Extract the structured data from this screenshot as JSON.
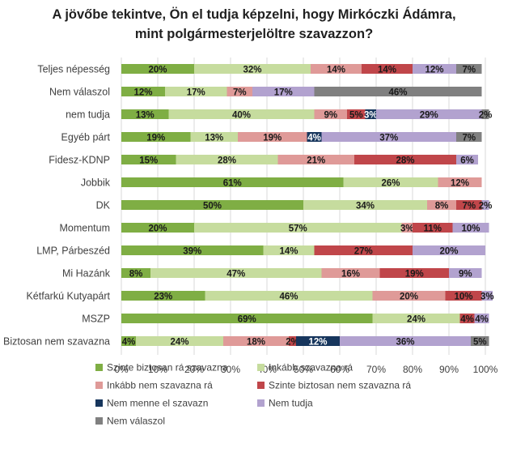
{
  "chart_data": {
    "type": "bar",
    "orientation": "horizontal",
    "stacked": true,
    "title_lines": [
      "A jövőbe tekintve, Ön el tudja képzelni, hogy Mirkóczki Ádámra,",
      "mint polgármesterjelöltre szavazzon?"
    ],
    "xlim": [
      0,
      100
    ],
    "x_ticks": [
      "0%",
      "10%",
      "20%",
      "30%",
      "40%",
      "50%",
      "60%",
      "70%",
      "80%",
      "90%",
      "100%"
    ],
    "grid": true,
    "legend_position": "bottom",
    "categories": [
      "Teljes népesség",
      "Nem válaszol",
      "nem tudja",
      "Egyéb párt",
      "Fidesz-KDNP",
      "Jobbik",
      "DK",
      "Momentum",
      "LMP, Párbeszéd",
      "Mi Hazánk",
      "Kétfarkú Kutyapárt",
      "MSZP",
      "Biztosan nem szavazna"
    ],
    "series": [
      {
        "name": "Szinte biztosan rá szavazna",
        "color": "#7fae44",
        "label_color": "#1a1a1a",
        "values": [
          20,
          12,
          13,
          19,
          15,
          61,
          50,
          20,
          39,
          8,
          23,
          69,
          4
        ]
      },
      {
        "name": "Inkább szavazna rá",
        "color": "#c6dc9e",
        "label_color": "#1a1a1a",
        "values": [
          32,
          17,
          40,
          13,
          28,
          26,
          34,
          57,
          14,
          47,
          46,
          24,
          24
        ]
      },
      {
        "name": "Inkább nem szavazna rá",
        "color": "#df9a98",
        "label_color": "#1a1a1a",
        "values": [
          14,
          7,
          9,
          19,
          21,
          12,
          8,
          3,
          0,
          16,
          20,
          0,
          18
        ]
      },
      {
        "name": "Szinte biztosan nem szavazna rá",
        "color": "#c0464a",
        "label_color": "#1a1a1a",
        "values": [
          14,
          0,
          5,
          0,
          28,
          0,
          7,
          11,
          27,
          19,
          10,
          4,
          2
        ]
      },
      {
        "name": "Nem menne el szavazn",
        "color": "#17365d",
        "label_color": "#ffffff",
        "values": [
          0,
          0,
          3,
          4,
          0,
          0,
          0,
          0,
          0,
          0,
          0,
          0,
          12
        ]
      },
      {
        "name": "Nem tudja",
        "color": "#b2a2cf",
        "label_color": "#1a1a1a",
        "values": [
          12,
          17,
          29,
          37,
          6,
          0,
          2,
          10,
          20,
          9,
          3,
          4,
          36
        ]
      },
      {
        "name": "Nem válaszol",
        "color": "#808080",
        "label_color": "#1a1a1a",
        "values": [
          7,
          46,
          2,
          7,
          0,
          0,
          0,
          0,
          0,
          0,
          0,
          0,
          5
        ]
      }
    ]
  }
}
